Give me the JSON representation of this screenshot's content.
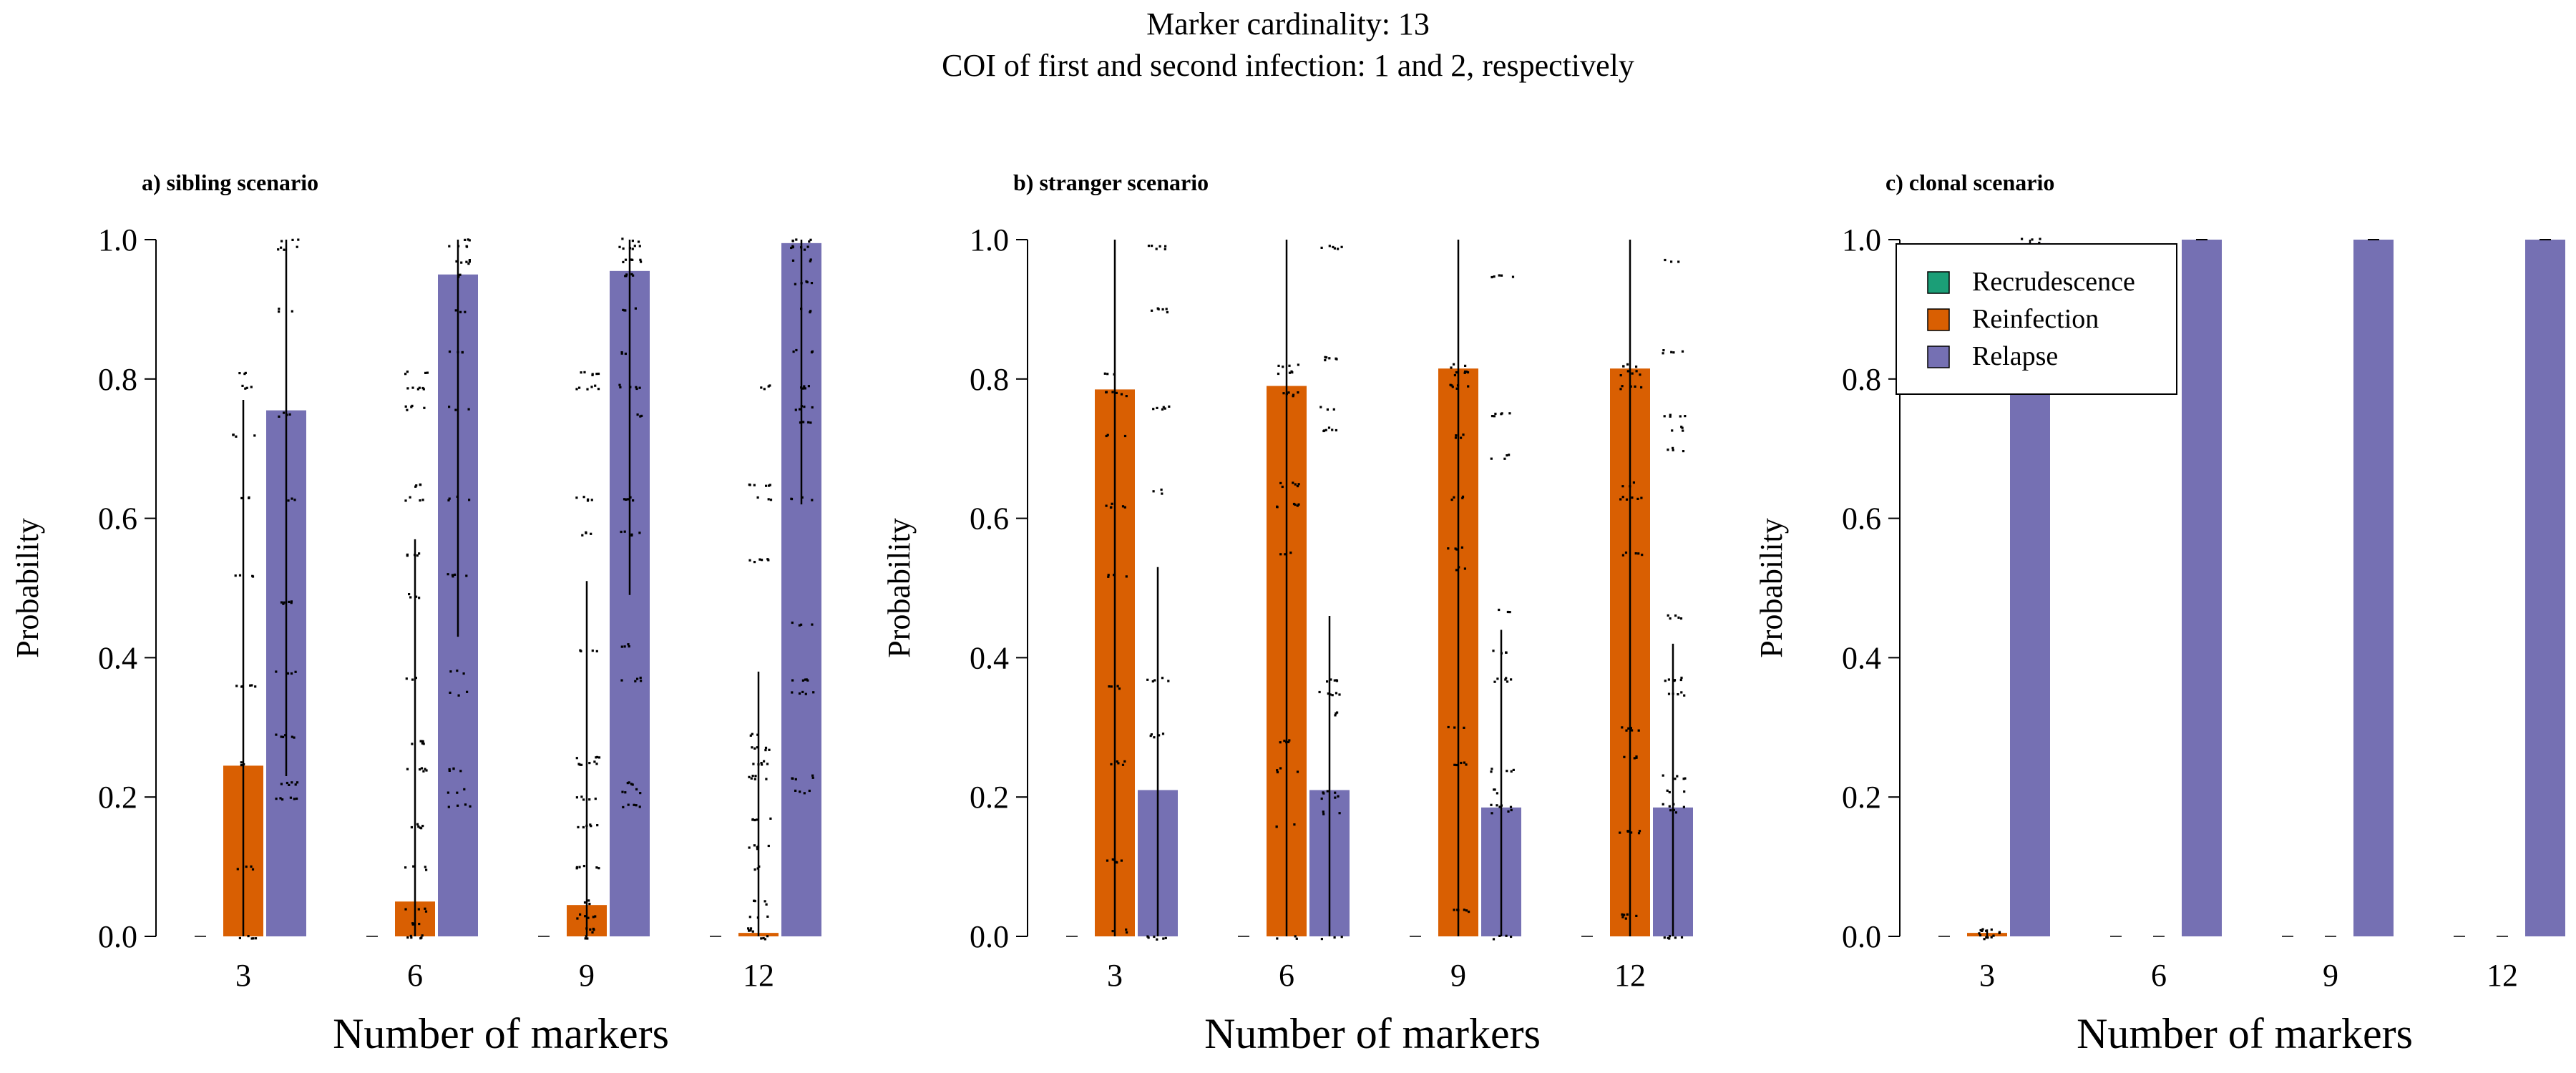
{
  "figure": {
    "title_line1": "Marker cardinality: 13",
    "title_line2": "COI of first and second infection: 1 and 2, respectively"
  },
  "legend": {
    "placement": "top-left of panel c",
    "entries": [
      {
        "label": "Recrudescence",
        "color": "#1b9e77"
      },
      {
        "label": "Reinfection",
        "color": "#d95f02"
      },
      {
        "label": "Relapse",
        "color": "#7570b3"
      }
    ]
  },
  "colors": {
    "recrudescence": "#1b9e77",
    "reinfection": "#d95f02",
    "relapse": "#7570b3"
  },
  "chart_data": [
    {
      "type": "bar",
      "title": "a) sibling scenario",
      "xlabel": "Number of markers",
      "ylabel": "Probability",
      "ylim": [
        0,
        1
      ],
      "yticks": [
        "0.0",
        "0.2",
        "0.4",
        "0.6",
        "0.8",
        "1.0"
      ],
      "categories": [
        "3",
        "6",
        "9",
        "12"
      ],
      "series": [
        {
          "name": "Recrudescence",
          "values": [
            0.0,
            0.0,
            0.0,
            0.0
          ]
        },
        {
          "name": "Reinfection",
          "values": [
            0.245,
            0.05,
            0.045,
            0.005
          ]
        },
        {
          "name": "Relapse",
          "values": [
            0.755,
            0.95,
            0.955,
            0.995
          ]
        }
      ],
      "error_bars": {
        "Reinfection": [
          [
            0.0,
            0.77
          ],
          [
            0.0,
            0.57
          ],
          [
            0.0,
            0.51
          ],
          [
            0.0,
            0.38
          ]
        ],
        "Relapse": [
          [
            0.23,
            1.0
          ],
          [
            0.43,
            1.0
          ],
          [
            0.49,
            1.0
          ],
          [
            0.62,
            1.0
          ]
        ]
      },
      "jitter_levels": {
        "Reinfection": [
          [
            0.0,
            0.1,
            0.25,
            0.36,
            0.52,
            0.63,
            0.72,
            0.79,
            0.81
          ],
          [
            0.0,
            0.02,
            0.04,
            0.1,
            0.16,
            0.24,
            0.28,
            0.37,
            0.49,
            0.55,
            0.63,
            0.65,
            0.76,
            0.79,
            0.81
          ],
          [
            0.0,
            0.01,
            0.03,
            0.05,
            0.1,
            0.16,
            0.2,
            0.25,
            0.26,
            0.41,
            0.58,
            0.63,
            0.79,
            0.81
          ],
          [
            0.0,
            0.01,
            0.03,
            0.05,
            0.1,
            0.13,
            0.17,
            0.23,
            0.25,
            0.27,
            0.29,
            0.54,
            0.63,
            0.65,
            0.79
          ]
        ],
        "Relapse": [
          [
            0.2,
            0.22,
            0.29,
            0.38,
            0.48,
            0.63,
            0.75,
            0.9,
            0.99,
            1.0
          ],
          [
            0.19,
            0.21,
            0.24,
            0.35,
            0.38,
            0.52,
            0.63,
            0.76,
            0.84,
            0.9,
            0.95,
            0.97,
            0.99,
            1.0
          ],
          [
            0.19,
            0.21,
            0.22,
            0.37,
            0.42,
            0.58,
            0.63,
            0.75,
            0.79,
            0.84,
            0.9,
            0.95,
            0.97,
            0.99,
            1.0
          ],
          [
            0.21,
            0.23,
            0.35,
            0.37,
            0.45,
            0.63,
            0.74,
            0.76,
            0.79,
            0.84,
            0.9,
            0.94,
            0.97,
            0.99,
            1.0
          ]
        ]
      }
    },
    {
      "type": "bar",
      "title": "b) stranger scenario",
      "xlabel": "Number of markers",
      "ylabel": "Probability",
      "ylim": [
        0,
        1
      ],
      "yticks": [
        "0.0",
        "0.2",
        "0.4",
        "0.6",
        "0.8",
        "1.0"
      ],
      "categories": [
        "3",
        "6",
        "9",
        "12"
      ],
      "series": [
        {
          "name": "Recrudescence",
          "values": [
            0.0,
            0.0,
            0.0,
            0.0
          ]
        },
        {
          "name": "Reinfection",
          "values": [
            0.785,
            0.79,
            0.815,
            0.815
          ]
        },
        {
          "name": "Relapse",
          "values": [
            0.21,
            0.21,
            0.185,
            0.185
          ]
        }
      ],
      "error_bars": {
        "Reinfection": [
          [
            0.0,
            1.0
          ],
          [
            0.0,
            1.0
          ],
          [
            0.0,
            1.0
          ],
          [
            0.0,
            1.0
          ]
        ],
        "Relapse": [
          [
            0.0,
            0.53
          ],
          [
            0.0,
            0.46
          ],
          [
            0.0,
            0.44
          ],
          [
            0.0,
            0.42
          ]
        ]
      },
      "jitter_levels": {
        "Reinfection": [
          [
            0.01,
            0.11,
            0.25,
            0.36,
            0.52,
            0.62,
            0.72,
            0.78,
            0.81
          ],
          [
            0.0,
            0.16,
            0.24,
            0.28,
            0.55,
            0.62,
            0.65,
            0.78,
            0.81,
            0.82
          ],
          [
            0.04,
            0.25,
            0.3,
            0.53,
            0.56,
            0.63,
            0.72,
            0.79,
            0.81,
            0.82
          ],
          [
            0.03,
            0.15,
            0.26,
            0.3,
            0.55,
            0.63,
            0.65,
            0.79,
            0.81,
            0.82
          ]
        ],
        "Relapse": [
          [
            0.0,
            0.29,
            0.37,
            0.64,
            0.76,
            0.9,
            0.99
          ],
          [
            0.0,
            0.18,
            0.2,
            0.21,
            0.32,
            0.35,
            0.37,
            0.73,
            0.76,
            0.83,
            0.99
          ],
          [
            0.0,
            0.18,
            0.19,
            0.21,
            0.24,
            0.37,
            0.41,
            0.47,
            0.69,
            0.75,
            0.95
          ],
          [
            0.0,
            0.18,
            0.19,
            0.21,
            0.23,
            0.35,
            0.37,
            0.46,
            0.7,
            0.73,
            0.75,
            0.84,
            0.97
          ]
        ]
      }
    },
    {
      "type": "bar",
      "title": "c) clonal scenario",
      "xlabel": "Number of markers",
      "ylabel": "Probability",
      "ylim": [
        0,
        1
      ],
      "yticks": [
        "0.0",
        "0.2",
        "0.4",
        "0.6",
        "0.8",
        "1.0"
      ],
      "categories": [
        "3",
        "6",
        "9",
        "12"
      ],
      "series": [
        {
          "name": "Recrudescence",
          "values": [
            0.0,
            0.0,
            0.0,
            0.0
          ]
        },
        {
          "name": "Reinfection",
          "values": [
            0.005,
            0.0,
            0.0,
            0.0
          ]
        },
        {
          "name": "Relapse",
          "values": [
            0.995,
            1.0,
            1.0,
            1.0
          ]
        }
      ],
      "error_bars": {
        "Reinfection": [
          [
            0.0,
            0.01
          ],
          [
            0.0,
            0.0
          ],
          [
            0.0,
            0.0
          ],
          [
            0.0,
            0.0
          ]
        ],
        "Relapse": [
          [
            0.99,
            1.0
          ],
          [
            1.0,
            1.0
          ],
          [
            1.0,
            1.0
          ],
          [
            1.0,
            1.0
          ]
        ]
      },
      "jitter_levels": {
        "Reinfection": [
          [
            0.0,
            0.005,
            0.01
          ],
          [],
          [],
          []
        ],
        "Relapse": [
          [
            0.99,
            1.0
          ],
          [],
          [],
          []
        ]
      }
    }
  ]
}
